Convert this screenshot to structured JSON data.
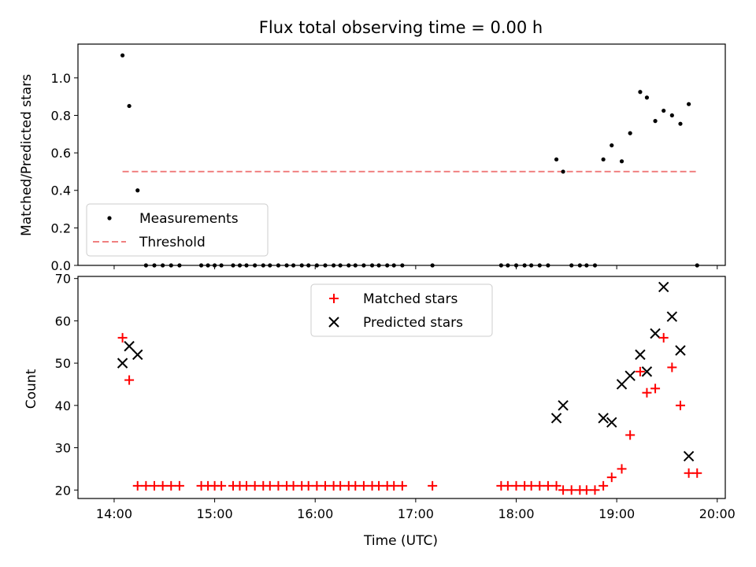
{
  "chart_data": [
    {
      "type": "scatter",
      "title": "Flux total observing time = 0.00 h",
      "ylabel": "Matched/Predicted stars",
      "xlabel": "",
      "ylim": [
        0,
        1.18
      ],
      "yticks": [
        "0.0",
        "0.2",
        "0.4",
        "0.6",
        "0.8",
        "1.0"
      ],
      "threshold": 0.5,
      "legend_position": "lower-left",
      "series": [
        {
          "name": "Measurements",
          "color": "#000000",
          "points": [
            [
              "14:05",
              1.12
            ],
            [
              "14:09",
              0.85
            ],
            [
              "14:14",
              0.4
            ],
            [
              "14:19",
              0.0
            ],
            [
              "14:24",
              0.0
            ],
            [
              "14:29",
              0.0
            ],
            [
              "14:34",
              0.0
            ],
            [
              "14:39",
              0.0
            ],
            [
              "14:52",
              0.0
            ],
            [
              "14:56",
              0.0
            ],
            [
              "15:00",
              0.0
            ],
            [
              "15:04",
              0.0
            ],
            [
              "15:11",
              0.0
            ],
            [
              "15:15",
              0.0
            ],
            [
              "15:19",
              0.0
            ],
            [
              "15:24",
              0.0
            ],
            [
              "15:29",
              0.0
            ],
            [
              "15:33",
              0.0
            ],
            [
              "15:38",
              0.0
            ],
            [
              "15:43",
              0.0
            ],
            [
              "15:47",
              0.0
            ],
            [
              "15:52",
              0.0
            ],
            [
              "15:56",
              0.0
            ],
            [
              "16:01",
              0.0
            ],
            [
              "16:06",
              0.0
            ],
            [
              "16:11",
              0.0
            ],
            [
              "16:15",
              0.0
            ],
            [
              "16:20",
              0.0
            ],
            [
              "16:24",
              0.0
            ],
            [
              "16:29",
              0.0
            ],
            [
              "16:34",
              0.0
            ],
            [
              "16:38",
              0.0
            ],
            [
              "16:43",
              0.0
            ],
            [
              "16:47",
              0.0
            ],
            [
              "16:52",
              0.0
            ],
            [
              "17:10",
              0.0
            ],
            [
              "17:51",
              0.0
            ],
            [
              "17:55",
              0.0
            ],
            [
              "18:00",
              0.0
            ],
            [
              "18:05",
              0.0
            ],
            [
              "18:09",
              0.0
            ],
            [
              "18:14",
              0.0
            ],
            [
              "18:19",
              0.0
            ],
            [
              "18:24",
              0.565
            ],
            [
              "18:28",
              0.5
            ],
            [
              "18:33",
              0.0
            ],
            [
              "18:38",
              0.0
            ],
            [
              "18:42",
              0.0
            ],
            [
              "18:47",
              0.0
            ],
            [
              "18:52",
              0.565
            ],
            [
              "18:57",
              0.64
            ],
            [
              "19:03",
              0.555
            ],
            [
              "19:08",
              0.705
            ],
            [
              "19:14",
              0.925
            ],
            [
              "19:18",
              0.895
            ],
            [
              "19:23",
              0.77
            ],
            [
              "19:28",
              0.825
            ],
            [
              "19:33",
              0.8
            ],
            [
              "19:38",
              0.755
            ],
            [
              "19:43",
              0.86
            ],
            [
              "19:48",
              0.0
            ]
          ]
        },
        {
          "name": "Threshold",
          "color": "#f08080",
          "x": [
            "14:05",
            "19:48"
          ],
          "values": [
            0.5,
            0.5
          ]
        }
      ]
    },
    {
      "type": "scatter",
      "title": "",
      "ylabel": "Count",
      "xlabel": "Time (UTC)",
      "ylim": [
        18,
        70.5
      ],
      "yticks": [
        "20",
        "30",
        "40",
        "50",
        "60",
        "70"
      ],
      "xticks": [
        "14:00",
        "15:00",
        "16:00",
        "17:00",
        "18:00",
        "19:00",
        "20:00"
      ],
      "legend_position": "upper-center",
      "series": [
        {
          "name": "Matched stars",
          "color": "#ff0000",
          "marker": "+",
          "points": [
            [
              "14:05",
              56
            ],
            [
              "14:09",
              46
            ],
            [
              "14:14",
              21
            ],
            [
              "14:19",
              21
            ],
            [
              "14:24",
              21
            ],
            [
              "14:29",
              21
            ],
            [
              "14:34",
              21
            ],
            [
              "14:39",
              21
            ],
            [
              "14:52",
              21
            ],
            [
              "14:56",
              21
            ],
            [
              "15:00",
              21
            ],
            [
              "15:04",
              21
            ],
            [
              "15:11",
              21
            ],
            [
              "15:15",
              21
            ],
            [
              "15:19",
              21
            ],
            [
              "15:24",
              21
            ],
            [
              "15:29",
              21
            ],
            [
              "15:33",
              21
            ],
            [
              "15:38",
              21
            ],
            [
              "15:43",
              21
            ],
            [
              "15:47",
              21
            ],
            [
              "15:52",
              21
            ],
            [
              "15:56",
              21
            ],
            [
              "16:01",
              21
            ],
            [
              "16:06",
              21
            ],
            [
              "16:11",
              21
            ],
            [
              "16:15",
              21
            ],
            [
              "16:20",
              21
            ],
            [
              "16:24",
              21
            ],
            [
              "16:29",
              21
            ],
            [
              "16:34",
              21
            ],
            [
              "16:38",
              21
            ],
            [
              "16:43",
              21
            ],
            [
              "16:47",
              21
            ],
            [
              "16:52",
              21
            ],
            [
              "17:10",
              21
            ],
            [
              "17:51",
              21
            ],
            [
              "17:55",
              21
            ],
            [
              "18:00",
              21
            ],
            [
              "18:05",
              21
            ],
            [
              "18:09",
              21
            ],
            [
              "18:14",
              21
            ],
            [
              "18:19",
              21
            ],
            [
              "18:24",
              21
            ],
            [
              "18:28",
              20
            ],
            [
              "18:33",
              20
            ],
            [
              "18:38",
              20
            ],
            [
              "18:42",
              20
            ],
            [
              "18:47",
              20
            ],
            [
              "18:52",
              21
            ],
            [
              "18:57",
              23
            ],
            [
              "19:03",
              25
            ],
            [
              "19:08",
              33
            ],
            [
              "19:14",
              48
            ],
            [
              "19:18",
              43
            ],
            [
              "19:23",
              44
            ],
            [
              "19:28",
              56
            ],
            [
              "19:33",
              49
            ],
            [
              "19:38",
              40
            ],
            [
              "19:43",
              24
            ],
            [
              "19:48",
              24
            ]
          ]
        },
        {
          "name": "Predicted stars",
          "color": "#000000",
          "marker": "x",
          "points": [
            [
              "14:05",
              50
            ],
            [
              "14:09",
              54
            ],
            [
              "14:14",
              52
            ],
            [
              "18:24",
              37
            ],
            [
              "18:28",
              40
            ],
            [
              "18:52",
              37
            ],
            [
              "18:57",
              36
            ],
            [
              "19:03",
              45
            ],
            [
              "19:08",
              47
            ],
            [
              "19:14",
              52
            ],
            [
              "19:18",
              48
            ],
            [
              "19:23",
              57
            ],
            [
              "19:28",
              68
            ],
            [
              "19:33",
              61
            ],
            [
              "19:38",
              53
            ],
            [
              "19:43",
              28
            ]
          ]
        }
      ]
    }
  ]
}
